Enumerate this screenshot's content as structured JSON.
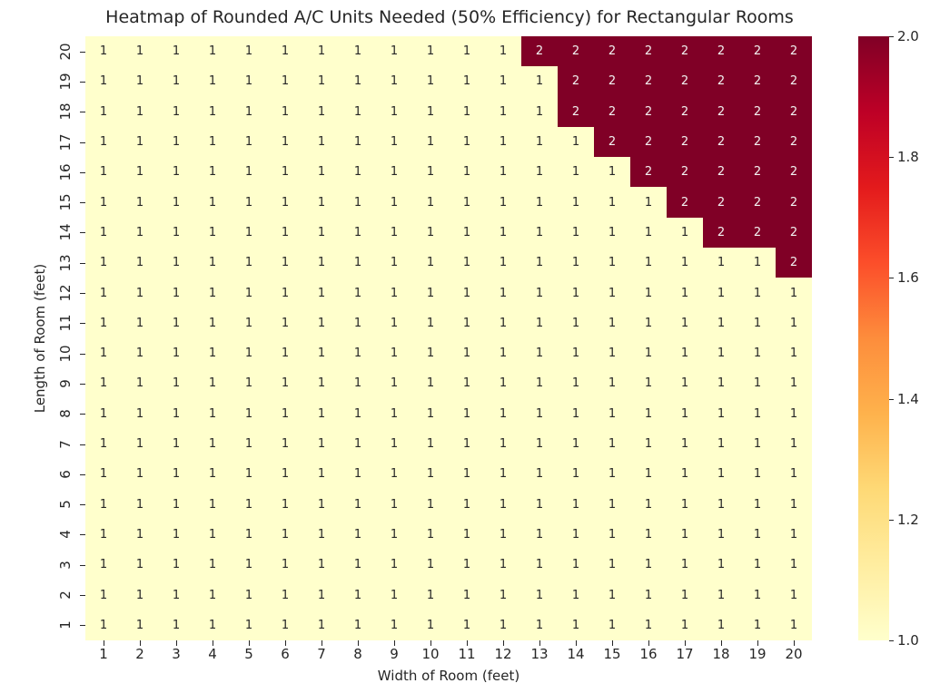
{
  "figure": {
    "title": "Heatmap of Rounded A/C Units Needed (50% Efficiency) for Rectangular Rooms",
    "xlabel": "Width of Room (feet)",
    "ylabel": "Length of Room (feet)"
  },
  "chart_data": {
    "type": "heatmap",
    "title": "Heatmap of Rounded A/C Units Needed (50% Efficiency) for Rectangular Rooms",
    "xlabel": "Width of Room (feet)",
    "ylabel": "Length of Room (feet)",
    "x_categories": [
      "1",
      "2",
      "3",
      "4",
      "5",
      "6",
      "7",
      "8",
      "9",
      "10",
      "11",
      "12",
      "13",
      "14",
      "15",
      "16",
      "17",
      "18",
      "19",
      "20"
    ],
    "y_categories_top_to_bottom": [
      "20",
      "19",
      "18",
      "17",
      "16",
      "15",
      "14",
      "13",
      "12",
      "11",
      "10",
      "9",
      "8",
      "7",
      "6",
      "5",
      "4",
      "3",
      "2",
      "1"
    ],
    "matrix_rows_top_to_bottom": [
      [
        1,
        1,
        1,
        1,
        1,
        1,
        1,
        1,
        1,
        1,
        1,
        1,
        2,
        2,
        2,
        2,
        2,
        2,
        2,
        2
      ],
      [
        1,
        1,
        1,
        1,
        1,
        1,
        1,
        1,
        1,
        1,
        1,
        1,
        1,
        2,
        2,
        2,
        2,
        2,
        2,
        2
      ],
      [
        1,
        1,
        1,
        1,
        1,
        1,
        1,
        1,
        1,
        1,
        1,
        1,
        1,
        2,
        2,
        2,
        2,
        2,
        2,
        2
      ],
      [
        1,
        1,
        1,
        1,
        1,
        1,
        1,
        1,
        1,
        1,
        1,
        1,
        1,
        1,
        2,
        2,
        2,
        2,
        2,
        2
      ],
      [
        1,
        1,
        1,
        1,
        1,
        1,
        1,
        1,
        1,
        1,
        1,
        1,
        1,
        1,
        1,
        2,
        2,
        2,
        2,
        2
      ],
      [
        1,
        1,
        1,
        1,
        1,
        1,
        1,
        1,
        1,
        1,
        1,
        1,
        1,
        1,
        1,
        1,
        2,
        2,
        2,
        2
      ],
      [
        1,
        1,
        1,
        1,
        1,
        1,
        1,
        1,
        1,
        1,
        1,
        1,
        1,
        1,
        1,
        1,
        1,
        2,
        2,
        2
      ],
      [
        1,
        1,
        1,
        1,
        1,
        1,
        1,
        1,
        1,
        1,
        1,
        1,
        1,
        1,
        1,
        1,
        1,
        1,
        1,
        2
      ],
      [
        1,
        1,
        1,
        1,
        1,
        1,
        1,
        1,
        1,
        1,
        1,
        1,
        1,
        1,
        1,
        1,
        1,
        1,
        1,
        1
      ],
      [
        1,
        1,
        1,
        1,
        1,
        1,
        1,
        1,
        1,
        1,
        1,
        1,
        1,
        1,
        1,
        1,
        1,
        1,
        1,
        1
      ],
      [
        1,
        1,
        1,
        1,
        1,
        1,
        1,
        1,
        1,
        1,
        1,
        1,
        1,
        1,
        1,
        1,
        1,
        1,
        1,
        1
      ],
      [
        1,
        1,
        1,
        1,
        1,
        1,
        1,
        1,
        1,
        1,
        1,
        1,
        1,
        1,
        1,
        1,
        1,
        1,
        1,
        1
      ],
      [
        1,
        1,
        1,
        1,
        1,
        1,
        1,
        1,
        1,
        1,
        1,
        1,
        1,
        1,
        1,
        1,
        1,
        1,
        1,
        1
      ],
      [
        1,
        1,
        1,
        1,
        1,
        1,
        1,
        1,
        1,
        1,
        1,
        1,
        1,
        1,
        1,
        1,
        1,
        1,
        1,
        1
      ],
      [
        1,
        1,
        1,
        1,
        1,
        1,
        1,
        1,
        1,
        1,
        1,
        1,
        1,
        1,
        1,
        1,
        1,
        1,
        1,
        1
      ],
      [
        1,
        1,
        1,
        1,
        1,
        1,
        1,
        1,
        1,
        1,
        1,
        1,
        1,
        1,
        1,
        1,
        1,
        1,
        1,
        1
      ],
      [
        1,
        1,
        1,
        1,
        1,
        1,
        1,
        1,
        1,
        1,
        1,
        1,
        1,
        1,
        1,
        1,
        1,
        1,
        1,
        1
      ],
      [
        1,
        1,
        1,
        1,
        1,
        1,
        1,
        1,
        1,
        1,
        1,
        1,
        1,
        1,
        1,
        1,
        1,
        1,
        1,
        1
      ],
      [
        1,
        1,
        1,
        1,
        1,
        1,
        1,
        1,
        1,
        1,
        1,
        1,
        1,
        1,
        1,
        1,
        1,
        1,
        1,
        1
      ],
      [
        1,
        1,
        1,
        1,
        1,
        1,
        1,
        1,
        1,
        1,
        1,
        1,
        1,
        1,
        1,
        1,
        1,
        1,
        1,
        1
      ]
    ],
    "value_colors": {
      "1": "#ffffcc",
      "2": "#800026"
    },
    "annot_colors": {
      "1": "#262626",
      "2": "#f2f2f2"
    },
    "colorbar": {
      "min": 1.0,
      "max": 2.0,
      "tick_labels_top_to_bottom": [
        "2.0",
        "1.8",
        "1.6",
        "1.4",
        "1.2",
        "1.0"
      ],
      "gradient_top_to_bottom": [
        "#800026",
        "#bd0026",
        "#e31a1c",
        "#fc4e2a",
        "#fd8d3c",
        "#feb24c",
        "#fed976",
        "#ffeda0",
        "#ffffcc"
      ]
    },
    "layout": {
      "grid": false,
      "legend": false,
      "colorbar_position": "right"
    }
  }
}
